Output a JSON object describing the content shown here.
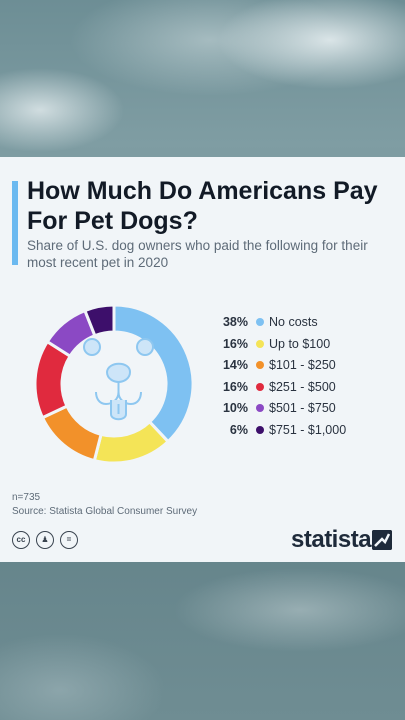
{
  "title": "How Much Do Americans Pay For Pet Dogs?",
  "subtitle": "Share of U.S. dog owners who paid the following for their most recent pet in 2020",
  "sample_note": "n=735",
  "source_note": "Source: Statista Global Consumer Survey",
  "brand": "statista",
  "icons": [
    "cc-icon",
    "by-icon",
    "nd-icon",
    "dog-face-icon",
    "statista-logo-icon"
  ],
  "chart_data": {
    "type": "pie",
    "style": "donut",
    "categories": [
      "No costs",
      "Up to $100",
      "$101 - $250",
      "$251 - $500",
      "$501 - $750",
      "$751 - $1,000"
    ],
    "values": [
      38,
      16,
      14,
      16,
      10,
      6
    ],
    "value_labels": [
      "38%",
      "16%",
      "14%",
      "16%",
      "10%",
      "6%"
    ],
    "colors": [
      "#7ec1f2",
      "#f4e457",
      "#f2912a",
      "#e02a3e",
      "#8b49c4",
      "#3d0f6b"
    ],
    "legend_position": "right",
    "title": "How Much Do Americans Pay For Pet Dogs?",
    "subtitle": "Share of U.S. dog owners who paid the following for their most recent pet in 2020"
  }
}
